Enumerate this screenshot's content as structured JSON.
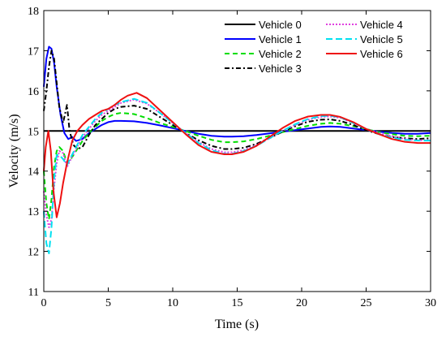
{
  "chart_data": {
    "type": "line",
    "title": "",
    "xlabel": "Time (s)",
    "ylabel": "Velocity (m/s)",
    "xlim": [
      0,
      30
    ],
    "ylim": [
      11,
      18
    ],
    "xticks": [
      0,
      5,
      10,
      15,
      20,
      25,
      30
    ],
    "yticks": [
      11,
      12,
      13,
      14,
      15,
      16,
      17,
      18
    ],
    "xtick_labels": [
      "0",
      "5",
      "10",
      "15",
      "20",
      "25",
      "30"
    ],
    "ytick_labels": [
      "11",
      "12",
      "13",
      "14",
      "15",
      "16",
      "17",
      "18"
    ],
    "grid": false,
    "legend_position": "top-right",
    "series": [
      {
        "name": "Vehicle 0",
        "color": "#000000",
        "dash": "solid",
        "x": [
          0,
          30
        ],
        "y": [
          15.0,
          15.0
        ]
      },
      {
        "name": "Vehicle 1",
        "color": "#0000ff",
        "dash": "solid",
        "x": [
          0,
          0.2,
          0.4,
          0.6,
          0.8,
          1.0,
          1.3,
          1.6,
          1.9,
          2.2,
          2.5,
          3.0,
          3.5,
          4.0,
          4.5,
          5.0,
          5.5,
          6.0,
          7.0,
          8.0,
          9.0,
          10.0,
          11.0,
          12.0,
          13.0,
          14.0,
          14.6,
          15.5,
          16.5,
          17.5,
          18.5,
          19.5,
          20.5,
          21.5,
          22.2,
          23.0,
          24.0,
          25.0,
          26.0,
          27.0,
          28.0,
          29.0,
          30.0
        ],
        "y": [
          16.1,
          16.8,
          17.1,
          17.05,
          16.7,
          16.1,
          15.4,
          14.95,
          14.8,
          14.85,
          14.75,
          14.8,
          14.95,
          15.05,
          15.15,
          15.22,
          15.25,
          15.25,
          15.24,
          15.2,
          15.14,
          15.07,
          15.0,
          14.93,
          14.88,
          14.86,
          14.86,
          14.87,
          14.9,
          14.94,
          14.98,
          15.02,
          15.06,
          15.1,
          15.11,
          15.1,
          15.06,
          15.02,
          14.98,
          14.95,
          14.93,
          14.93,
          14.95
        ]
      },
      {
        "name": "Vehicle 2",
        "color": "#00dd00",
        "dash": "6,4",
        "x": [
          0,
          0.2,
          0.4,
          0.6,
          0.8,
          1.0,
          1.2,
          1.5,
          1.8,
          2.1,
          2.5,
          3.0,
          3.5,
          4.0,
          4.5,
          5.0,
          5.5,
          6.0,
          7.0,
          8.0,
          9.0,
          10.0,
          11.0,
          12.0,
          13.0,
          14.0,
          14.6,
          15.5,
          16.5,
          17.5,
          18.5,
          19.5,
          20.5,
          21.5,
          22.2,
          23.0,
          24.0,
          25.0,
          26.0,
          27.0,
          28.0,
          29.0,
          30.0
        ],
        "y": [
          14.0,
          13.2,
          12.8,
          13.3,
          14.1,
          14.5,
          14.6,
          14.5,
          14.2,
          14.3,
          14.5,
          14.75,
          14.95,
          15.1,
          15.25,
          15.35,
          15.42,
          15.45,
          15.42,
          15.32,
          15.2,
          15.1,
          15.0,
          14.88,
          14.78,
          14.72,
          14.72,
          14.74,
          14.8,
          14.88,
          14.97,
          15.05,
          15.13,
          15.18,
          15.2,
          15.18,
          15.12,
          15.05,
          14.97,
          14.92,
          14.88,
          14.87,
          14.88
        ]
      },
      {
        "name": "Vehicle 3",
        "color": "#000000",
        "dash": "6,3,2,3",
        "x": [
          0,
          0.2,
          0.4,
          0.6,
          0.8,
          1.0,
          1.2,
          1.5,
          1.8,
          2.0,
          2.3,
          2.6,
          3.0,
          3.5,
          4.0,
          4.5,
          5.0,
          5.5,
          6.0,
          7.0,
          8.0,
          9.0,
          10.0,
          11.0,
          12.0,
          13.0,
          14.0,
          14.6,
          15.5,
          16.5,
          17.5,
          18.5,
          19.5,
          20.5,
          21.5,
          22.2,
          23.0,
          24.0,
          25.0,
          26.0,
          27.0,
          28.0,
          29.0,
          30.0
        ],
        "y": [
          15.5,
          16.0,
          16.6,
          17.0,
          16.8,
          16.2,
          15.6,
          15.2,
          15.65,
          15.0,
          14.65,
          14.55,
          14.6,
          14.9,
          15.15,
          15.3,
          15.45,
          15.55,
          15.6,
          15.63,
          15.55,
          15.35,
          15.15,
          14.95,
          14.77,
          14.63,
          14.55,
          14.55,
          14.58,
          14.68,
          14.82,
          14.98,
          15.12,
          15.23,
          15.28,
          15.29,
          15.25,
          15.15,
          15.02,
          14.92,
          14.85,
          14.82,
          14.8,
          14.82
        ]
      },
      {
        "name": "Vehicle 4",
        "color": "#e040e0",
        "dash": "2,2",
        "x": [
          0,
          0.2,
          0.4,
          0.6,
          0.8,
          1.0,
          1.2,
          1.5,
          1.8,
          2.1,
          2.5,
          3.0,
          3.5,
          4.0,
          4.5,
          5.0,
          5.5,
          6.0,
          7.0,
          8.0,
          9.0,
          10.0,
          11.0,
          12.0,
          13.0,
          14.0,
          14.6,
          15.5,
          16.5,
          17.5,
          18.5,
          19.5,
          20.5,
          21.5,
          22.2,
          23.0,
          24.0,
          25.0,
          26.0,
          27.0,
          28.0,
          29.0,
          30.0
        ],
        "y": [
          13.5,
          12.9,
          12.6,
          12.8,
          13.6,
          14.2,
          14.5,
          14.45,
          14.1,
          14.3,
          14.55,
          14.85,
          15.05,
          15.25,
          15.4,
          15.5,
          15.6,
          15.7,
          15.78,
          15.68,
          15.45,
          15.2,
          14.95,
          14.72,
          14.55,
          14.47,
          14.47,
          14.52,
          14.65,
          14.82,
          15.0,
          15.15,
          15.28,
          15.35,
          15.36,
          15.33,
          15.2,
          15.05,
          14.95,
          14.87,
          14.8,
          14.77,
          14.77
        ]
      },
      {
        "name": "Vehicle 5",
        "color": "#00e0f0",
        "dash": "8,4",
        "x": [
          0,
          0.2,
          0.4,
          0.6,
          0.8,
          1.0,
          1.2,
          1.5,
          1.8,
          2.1,
          2.5,
          3.0,
          3.5,
          4.0,
          4.5,
          5.0,
          5.5,
          6.0,
          7.0,
          8.0,
          9.0,
          10.0,
          11.0,
          12.0,
          13.0,
          14.0,
          14.6,
          15.5,
          16.5,
          17.5,
          18.5,
          19.5,
          20.5,
          21.5,
          22.2,
          23.0,
          24.0,
          25.0,
          26.0,
          27.0,
          28.0,
          29.0,
          30.0
        ],
        "y": [
          13.0,
          12.2,
          11.95,
          12.6,
          13.8,
          14.4,
          14.4,
          14.3,
          14.15,
          14.35,
          14.6,
          14.9,
          15.1,
          15.3,
          15.45,
          15.55,
          15.65,
          15.72,
          15.8,
          15.7,
          15.45,
          15.2,
          14.95,
          14.7,
          14.52,
          14.43,
          14.43,
          14.5,
          14.63,
          14.82,
          15.0,
          15.17,
          15.3,
          15.37,
          15.38,
          15.34,
          15.2,
          15.05,
          14.92,
          14.83,
          14.78,
          14.76,
          14.76
        ]
      },
      {
        "name": "Vehicle 6",
        "color": "#ee1111",
        "dash": "solid",
        "x": [
          0,
          0.15,
          0.35,
          0.55,
          0.75,
          1.0,
          1.25,
          1.5,
          1.8,
          2.2,
          2.6,
          3.0,
          3.5,
          4.0,
          4.5,
          5.0,
          5.5,
          6.0,
          6.5,
          7.2,
          8.0,
          9.0,
          10.0,
          11.0,
          12.0,
          13.0,
          14.0,
          14.6,
          15.5,
          16.5,
          17.5,
          18.5,
          19.5,
          20.5,
          21.5,
          22.2,
          23.0,
          24.0,
          25.0,
          26.0,
          27.0,
          28.0,
          29.0,
          30.0
        ],
        "y": [
          14.0,
          14.6,
          15.0,
          14.5,
          13.5,
          12.85,
          13.2,
          13.7,
          14.2,
          14.75,
          15.0,
          15.15,
          15.3,
          15.4,
          15.5,
          15.55,
          15.65,
          15.78,
          15.88,
          15.95,
          15.82,
          15.52,
          15.22,
          14.92,
          14.65,
          14.48,
          14.42,
          14.42,
          14.48,
          14.63,
          14.85,
          15.07,
          15.25,
          15.36,
          15.4,
          15.4,
          15.35,
          15.22,
          15.05,
          14.92,
          14.8,
          14.73,
          14.7,
          14.7
        ]
      }
    ]
  }
}
